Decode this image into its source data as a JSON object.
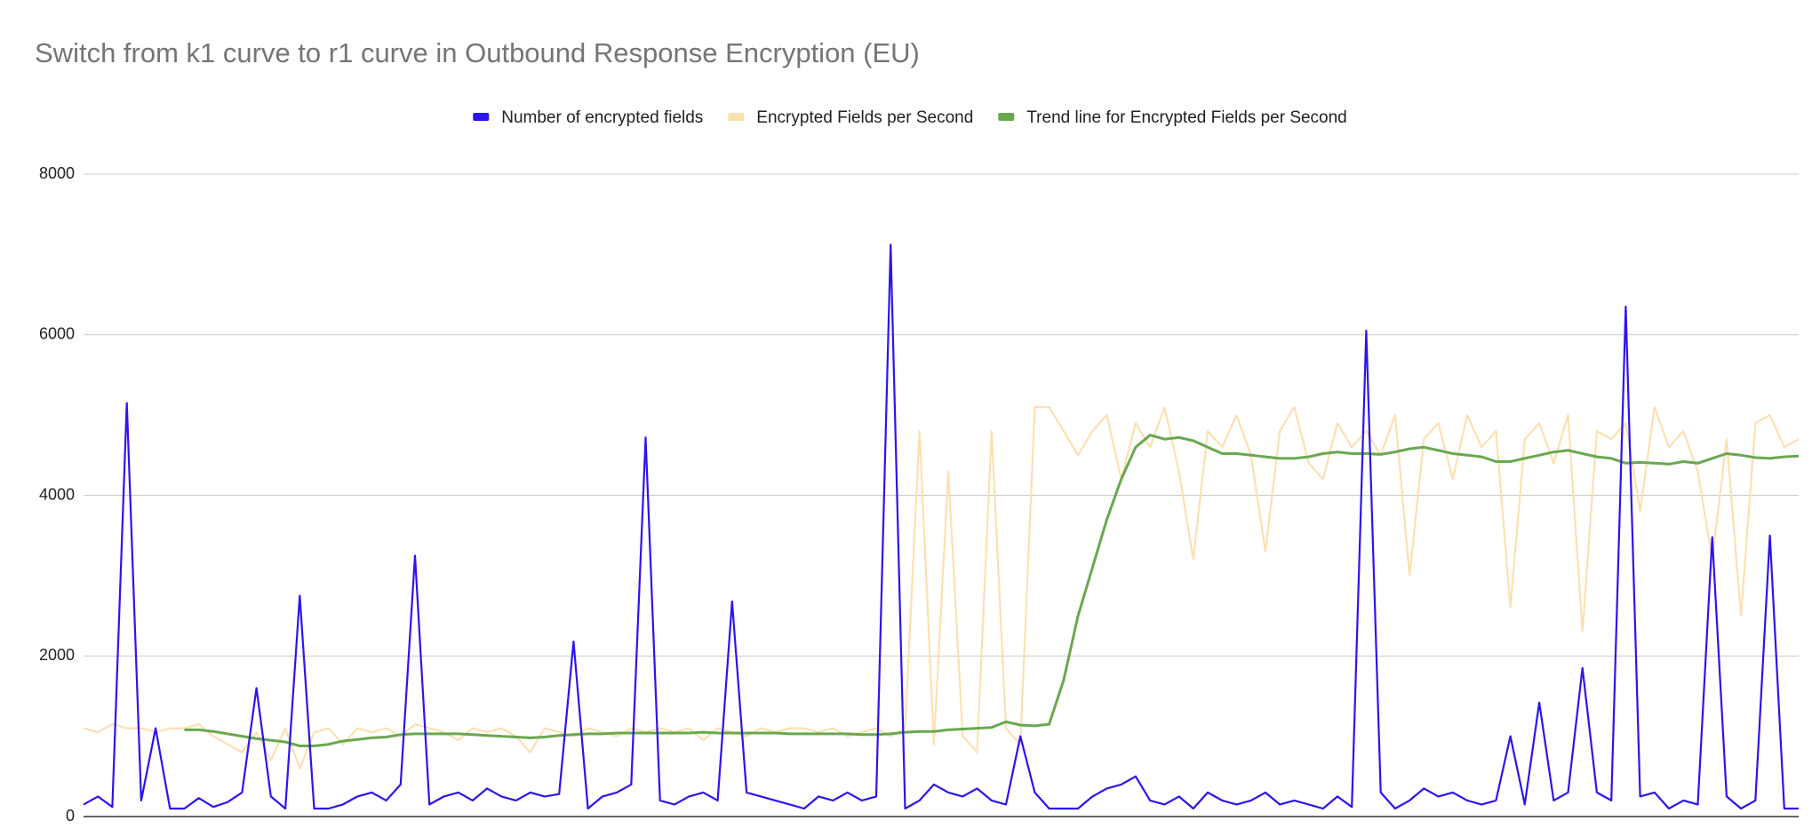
{
  "chart_data": {
    "type": "line",
    "title": "Switch from k1 curve to r1 curve in Outbound Response Encryption (EU)",
    "legend": "top",
    "grid": true,
    "ylim": [
      0,
      8000
    ],
    "yticks": [
      0,
      2000,
      4000,
      6000,
      8000
    ],
    "series": [
      {
        "name": "Encrypted Fields per Second",
        "color": "#fde0b2",
        "legend_order": 1,
        "values": [
          1100,
          1050,
          1150,
          1100,
          1100,
          1050,
          1100,
          1100,
          1150,
          1000,
          900,
          800,
          1050,
          700,
          1100,
          600,
          1050,
          1100,
          900,
          1100,
          1050,
          1100,
          1000,
          1150,
          1100,
          1050,
          950,
          1100,
          1050,
          1100,
          1000,
          800,
          1100,
          1050,
          1000,
          1100,
          1050,
          1000,
          1100,
          1050,
          1100,
          1050,
          1100,
          950,
          1100,
          1050,
          1000,
          1100,
          1050,
          1100,
          1100,
          1050,
          1100,
          1000,
          1050,
          1100,
          1000,
          1100,
          4800,
          900,
          4300,
          1000,
          800,
          4800,
          1100,
          900,
          5100,
          5100,
          4800,
          4500,
          4800,
          5000,
          4200,
          4900,
          4600,
          5100,
          4300,
          3200,
          4800,
          4600,
          5000,
          4500,
          3300,
          4800,
          5100,
          4400,
          4200,
          4900,
          4600,
          4800,
          4500,
          5000,
          3000,
          4700,
          4900,
          4200,
          5000,
          4600,
          4800,
          2600,
          4700,
          4900,
          4400,
          5000,
          2300,
          4800,
          4700,
          4900,
          3800,
          5100,
          4600,
          4800,
          4300,
          3200,
          4700,
          2500,
          4900,
          5000,
          4600,
          4700
        ]
      },
      {
        "name": "Trend line for Encrypted Fields per Second",
        "color": "#6aa84f",
        "legend_order": 2,
        "values": [
          null,
          null,
          null,
          null,
          null,
          null,
          null,
          1080,
          1080,
          1060,
          1030,
          1000,
          970,
          950,
          930,
          880,
          880,
          900,
          940,
          960,
          980,
          990,
          1020,
          1030,
          1030,
          1030,
          1030,
          1020,
          1010,
          1000,
          990,
          980,
          990,
          1010,
          1020,
          1030,
          1030,
          1040,
          1040,
          1040,
          1040,
          1040,
          1040,
          1050,
          1040,
          1040,
          1040,
          1040,
          1040,
          1030,
          1030,
          1030,
          1030,
          1030,
          1020,
          1020,
          1030,
          1050,
          1060,
          1060,
          1080,
          1090,
          1100,
          1110,
          1180,
          1140,
          1130,
          1150,
          1700,
          2500,
          3100,
          3700,
          4200,
          4600,
          4750,
          4700,
          4720,
          4680,
          4600,
          4520,
          4520,
          4500,
          4480,
          4460,
          4460,
          4480,
          4520,
          4540,
          4520,
          4520,
          4510,
          4540,
          4580,
          4600,
          4560,
          4520,
          4500,
          4480,
          4420,
          4420,
          4460,
          4500,
          4540,
          4560,
          4520,
          4480,
          4460,
          4400,
          4410,
          4400,
          4390,
          4420,
          4400,
          4460,
          4520,
          4500,
          4470,
          4460,
          4480,
          4490
        ]
      },
      {
        "name": "Number of encrypted fields",
        "color": "#2b15ee",
        "legend_order": 0,
        "values": [
          150,
          250,
          120,
          5150,
          200,
          1100,
          100,
          100,
          230,
          120,
          180,
          300,
          1600,
          250,
          100,
          2750,
          100,
          100,
          150,
          250,
          300,
          200,
          400,
          3250,
          150,
          250,
          300,
          200,
          350,
          250,
          200,
          300,
          250,
          280,
          2180,
          100,
          250,
          300,
          400,
          4720,
          200,
          150,
          250,
          300,
          200,
          2680,
          300,
          250,
          200,
          150,
          100,
          250,
          200,
          300,
          200,
          250,
          7120,
          100,
          200,
          400,
          300,
          250,
          350,
          200,
          150,
          1000,
          300,
          100,
          100,
          100,
          250,
          350,
          400,
          500,
          200,
          150,
          250,
          100,
          300,
          200,
          150,
          200,
          300,
          150,
          200,
          150,
          100,
          250,
          120,
          6050,
          300,
          100,
          200,
          350,
          250,
          300,
          200,
          150,
          200,
          1000,
          150,
          1420,
          200,
          300,
          1850,
          300,
          200,
          6350,
          250,
          300,
          100,
          200,
          150,
          3480,
          250,
          100,
          200,
          3500,
          100,
          100
        ]
      }
    ]
  }
}
